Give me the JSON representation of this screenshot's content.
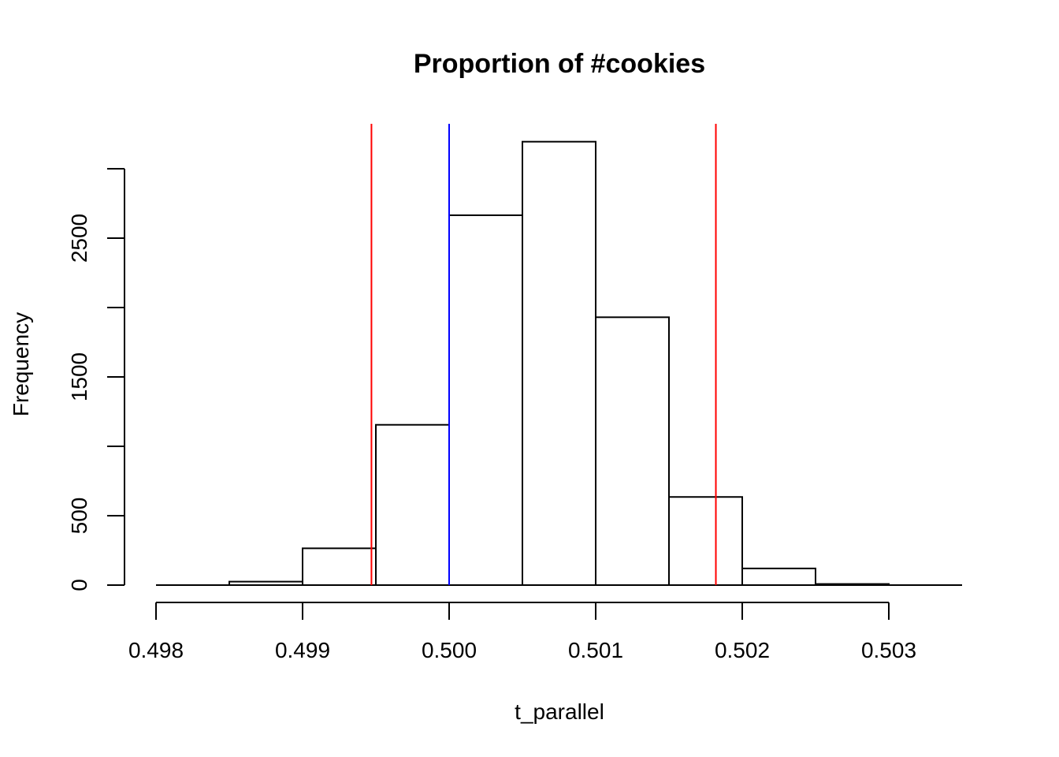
{
  "chart_data": {
    "type": "bar",
    "title": "Proportion of #cookies",
    "xlabel": "t_parallel",
    "ylabel": "Frequency",
    "bins": [
      {
        "x0": 0.498,
        "x1": 0.4985,
        "count": 0
      },
      {
        "x0": 0.4985,
        "x1": 0.499,
        "count": 25
      },
      {
        "x0": 0.499,
        "x1": 0.4995,
        "count": 265
      },
      {
        "x0": 0.4995,
        "x1": 0.5,
        "count": 1155
      },
      {
        "x0": 0.5,
        "x1": 0.5005,
        "count": 2665
      },
      {
        "x0": 0.5005,
        "x1": 0.501,
        "count": 3195
      },
      {
        "x0": 0.501,
        "x1": 0.5015,
        "count": 1930
      },
      {
        "x0": 0.5015,
        "x1": 0.502,
        "count": 635
      },
      {
        "x0": 0.502,
        "x1": 0.5025,
        "count": 120
      },
      {
        "x0": 0.5025,
        "x1": 0.503,
        "count": 8
      },
      {
        "x0": 0.503,
        "x1": 0.5035,
        "count": 0
      }
    ],
    "xlim": [
      0.498,
      0.5035
    ],
    "ylim": [
      0,
      3450
    ],
    "x_ticks": [
      0.498,
      0.499,
      0.5,
      0.501,
      0.502,
      0.503
    ],
    "x_tick_labels": [
      "0.498",
      "0.499",
      "0.500",
      "0.501",
      "0.502",
      "0.503"
    ],
    "y_ticks": [
      0,
      500,
      1000,
      1500,
      2000,
      2500,
      3000
    ],
    "y_tick_labels": [
      "0",
      "500",
      "",
      "1500",
      "",
      "2500",
      ""
    ],
    "vlines": [
      {
        "x": 0.49947,
        "color": "#ff0000"
      },
      {
        "x": 0.5,
        "color": "#0000ff"
      },
      {
        "x": 0.50182,
        "color": "#ff0000"
      }
    ],
    "bar_fill": "#ffffff",
    "bar_stroke": "#000000",
    "grid": false
  }
}
